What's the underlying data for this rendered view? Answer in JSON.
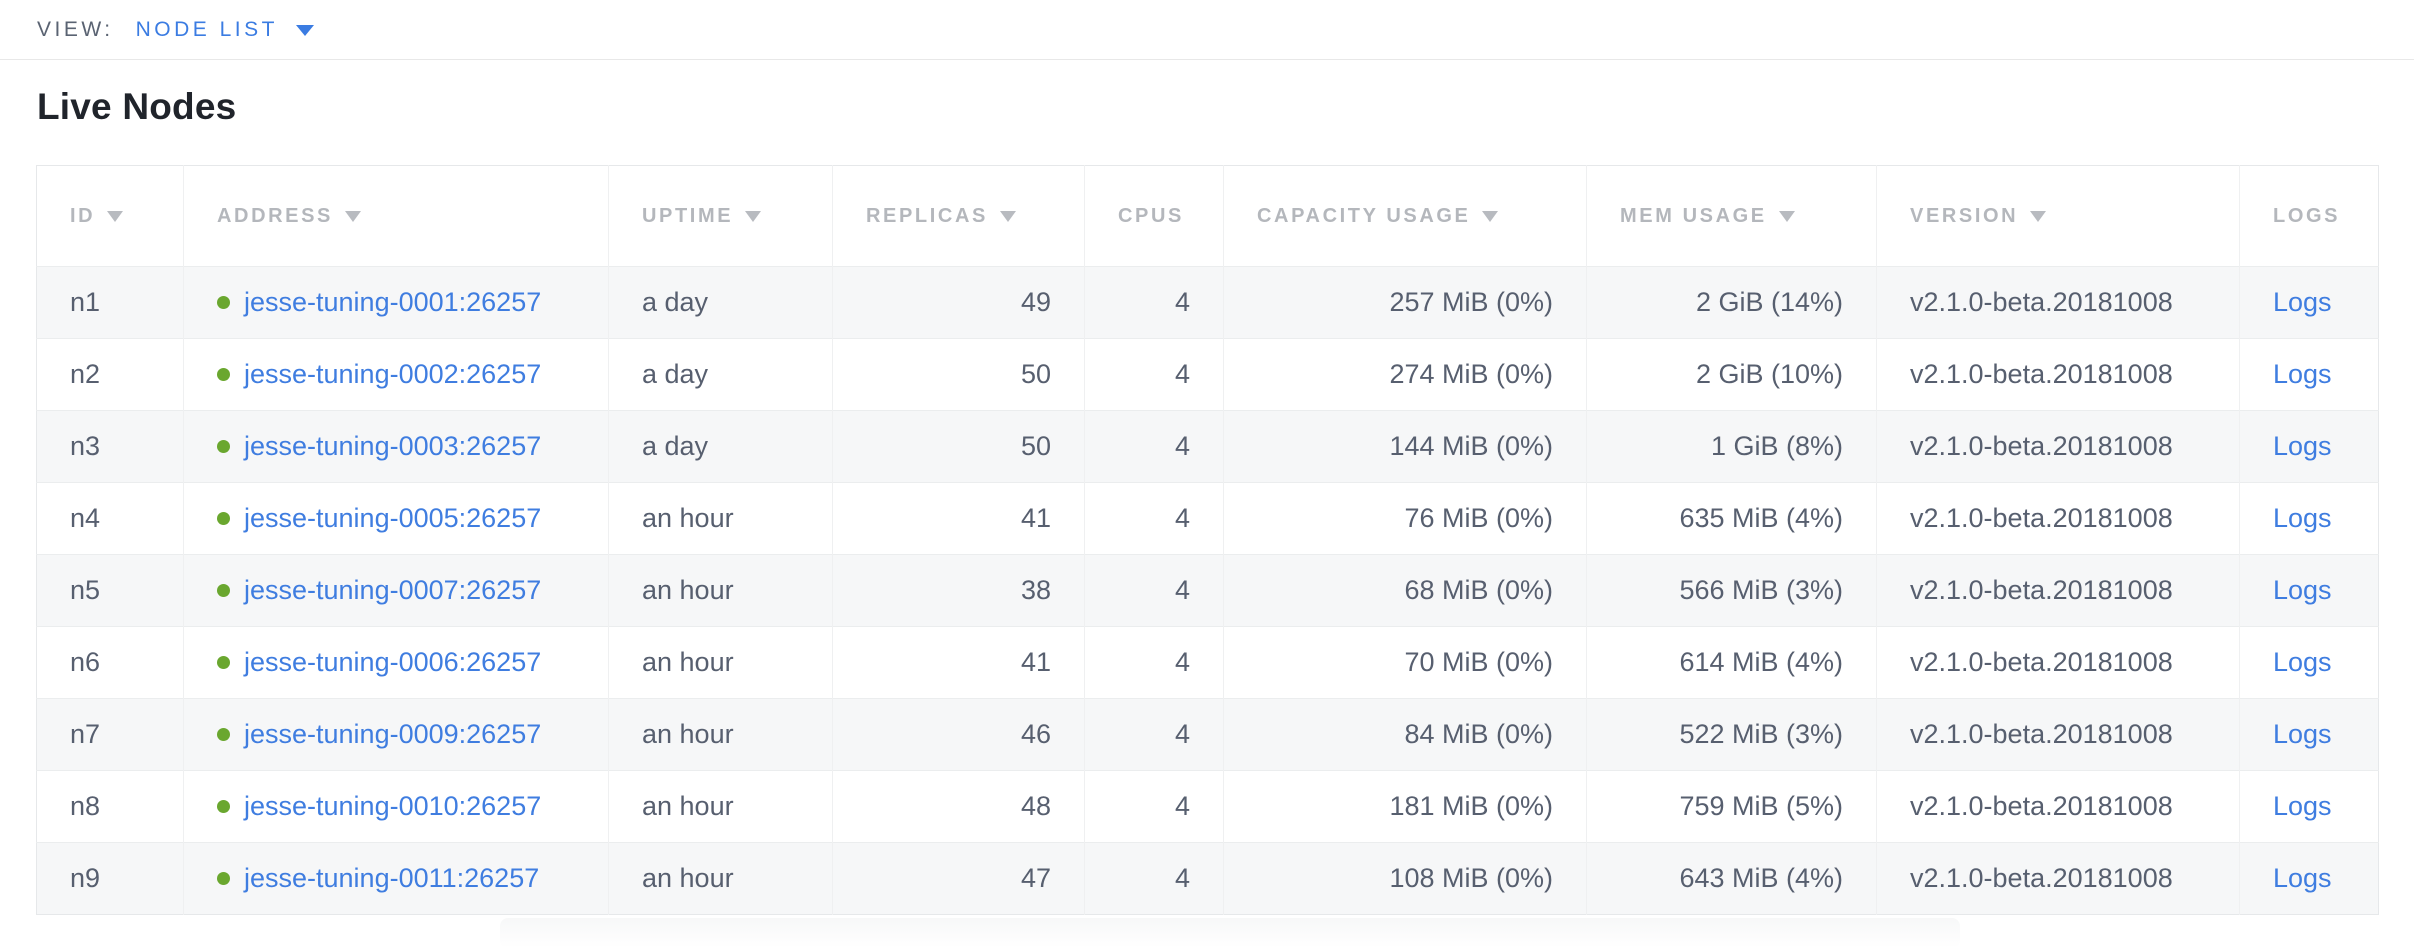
{
  "view_bar": {
    "label": "VIEW:",
    "selected": "NODE LIST"
  },
  "section": {
    "title": "Live Nodes"
  },
  "colors": {
    "link_blue": "#3f7de0",
    "accent_blue": "#3b7ce2",
    "status_green": "#6aa72f",
    "header_gray": "#b4b7bc",
    "cell_text": "#575f6f",
    "row_alt_bg": "#f6f7f8"
  },
  "table": {
    "columns": [
      {
        "key": "id",
        "label": "ID",
        "sortable": true
      },
      {
        "key": "address",
        "label": "ADDRESS",
        "sortable": true
      },
      {
        "key": "uptime",
        "label": "UPTIME",
        "sortable": true
      },
      {
        "key": "replicas",
        "label": "REPLICAS",
        "sortable": true
      },
      {
        "key": "cpus",
        "label": "CPUS",
        "sortable": false
      },
      {
        "key": "capacity",
        "label": "CAPACITY USAGE",
        "sortable": true
      },
      {
        "key": "mem",
        "label": "MEM USAGE",
        "sortable": true
      },
      {
        "key": "version",
        "label": "VERSION",
        "sortable": true
      },
      {
        "key": "logs",
        "label": "LOGS",
        "sortable": false
      }
    ],
    "rows": [
      {
        "id": "n1",
        "address": "jesse-tuning-0001:26257",
        "status": "live",
        "uptime": "a day",
        "replicas": "49",
        "cpus": "4",
        "capacity": "257 MiB (0%)",
        "mem": "2 GiB (14%)",
        "version": "v2.1.0-beta.20181008",
        "logs": "Logs"
      },
      {
        "id": "n2",
        "address": "jesse-tuning-0002:26257",
        "status": "live",
        "uptime": "a day",
        "replicas": "50",
        "cpus": "4",
        "capacity": "274 MiB (0%)",
        "mem": "2 GiB (10%)",
        "version": "v2.1.0-beta.20181008",
        "logs": "Logs"
      },
      {
        "id": "n3",
        "address": "jesse-tuning-0003:26257",
        "status": "live",
        "uptime": "a day",
        "replicas": "50",
        "cpus": "4",
        "capacity": "144 MiB (0%)",
        "mem": "1 GiB (8%)",
        "version": "v2.1.0-beta.20181008",
        "logs": "Logs"
      },
      {
        "id": "n4",
        "address": "jesse-tuning-0005:26257",
        "status": "live",
        "uptime": "an hour",
        "replicas": "41",
        "cpus": "4",
        "capacity": "76 MiB (0%)",
        "mem": "635 MiB (4%)",
        "version": "v2.1.0-beta.20181008",
        "logs": "Logs"
      },
      {
        "id": "n5",
        "address": "jesse-tuning-0007:26257",
        "status": "live",
        "uptime": "an hour",
        "replicas": "38",
        "cpus": "4",
        "capacity": "68 MiB (0%)",
        "mem": "566 MiB (3%)",
        "version": "v2.1.0-beta.20181008",
        "logs": "Logs"
      },
      {
        "id": "n6",
        "address": "jesse-tuning-0006:26257",
        "status": "live",
        "uptime": "an hour",
        "replicas": "41",
        "cpus": "4",
        "capacity": "70 MiB (0%)",
        "mem": "614 MiB (4%)",
        "version": "v2.1.0-beta.20181008",
        "logs": "Logs"
      },
      {
        "id": "n7",
        "address": "jesse-tuning-0009:26257",
        "status": "live",
        "uptime": "an hour",
        "replicas": "46",
        "cpus": "4",
        "capacity": "84 MiB (0%)",
        "mem": "522 MiB (3%)",
        "version": "v2.1.0-beta.20181008",
        "logs": "Logs"
      },
      {
        "id": "n8",
        "address": "jesse-tuning-0010:26257",
        "status": "live",
        "uptime": "an hour",
        "replicas": "48",
        "cpus": "4",
        "capacity": "181 MiB (0%)",
        "mem": "759 MiB (5%)",
        "version": "v2.1.0-beta.20181008",
        "logs": "Logs"
      },
      {
        "id": "n9",
        "address": "jesse-tuning-0011:26257",
        "status": "live",
        "uptime": "an hour",
        "replicas": "47",
        "cpus": "4",
        "capacity": "108 MiB (0%)",
        "mem": "643 MiB (4%)",
        "version": "v2.1.0-beta.20181008",
        "logs": "Logs"
      }
    ]
  }
}
